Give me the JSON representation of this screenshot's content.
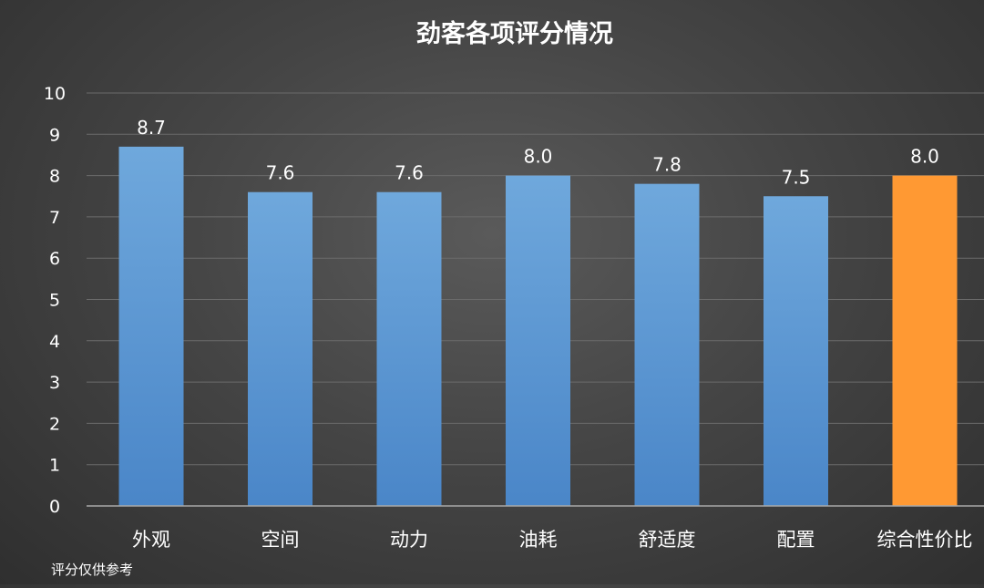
{
  "footnote": "评分仅供参考",
  "chart_data": {
    "type": "bar",
    "title": "劲客各项评分情况",
    "xlabel": "",
    "ylabel": "",
    "categories": [
      "外观",
      "空间",
      "动力",
      "油耗",
      "舒适度",
      "配置",
      "综合性价比"
    ],
    "values": [
      8.7,
      7.6,
      7.6,
      8.0,
      7.8,
      7.5,
      8.0
    ],
    "data_labels": [
      "8.7",
      "7.6",
      "7.6",
      "8.0",
      "7.8",
      "7.5",
      "8.0"
    ],
    "yticks": [
      "0",
      "1",
      "2",
      "3",
      "4",
      "5",
      "6",
      "7",
      "8",
      "9",
      "10"
    ],
    "ylim": [
      0,
      10
    ],
    "grid": true,
    "legend": "none",
    "colors": {
      "bar": "#5b9bd5",
      "highlight": "#ff9933",
      "highlight_index": 6
    }
  }
}
